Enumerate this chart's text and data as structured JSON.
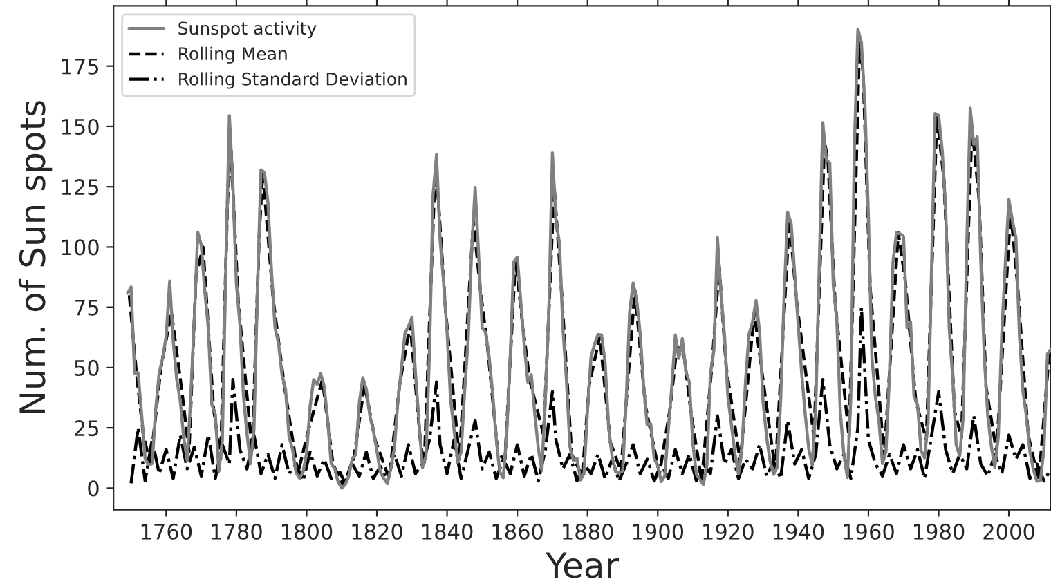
{
  "chart_data": {
    "type": "line",
    "xlabel": "Year",
    "ylabel": "Num. of Sun spots",
    "xlim": [
      1745,
      2012
    ],
    "xticks": [
      1760,
      1780,
      1800,
      1820,
      1840,
      1860,
      1880,
      1900,
      1920,
      1940,
      1960,
      1980,
      2000
    ],
    "ylim": [
      -9,
      200
    ],
    "yticks": [
      0,
      25,
      50,
      75,
      100,
      125,
      150,
      175
    ],
    "grid": false,
    "legend": "top left",
    "marker": "none",
    "series": [
      {
        "name": "Sunspot activity",
        "color": "#808080",
        "line_style": "solid",
        "x": [
          1749,
          1750,
          1751,
          1752,
          1753,
          1754,
          1755,
          1756,
          1757,
          1758,
          1759,
          1760,
          1761,
          1762,
          1763,
          1764,
          1765,
          1766,
          1767,
          1768,
          1769,
          1770,
          1771,
          1772,
          1773,
          1774,
          1775,
          1776,
          1777,
          1778,
          1779,
          1780,
          1781,
          1782,
          1783,
          1784,
          1785,
          1786,
          1787,
          1788,
          1789,
          1790,
          1791,
          1792,
          1793,
          1794,
          1795,
          1796,
          1797,
          1798,
          1799,
          1800,
          1801,
          1802,
          1803,
          1804,
          1805,
          1806,
          1807,
          1808,
          1809,
          1810,
          1811,
          1812,
          1813,
          1814,
          1815,
          1816,
          1817,
          1818,
          1819,
          1820,
          1821,
          1822,
          1823,
          1824,
          1825,
          1826,
          1827,
          1828,
          1829,
          1830,
          1831,
          1832,
          1833,
          1834,
          1835,
          1836,
          1837,
          1838,
          1839,
          1840,
          1841,
          1842,
          1843,
          1844,
          1845,
          1846,
          1847,
          1848,
          1849,
          1850,
          1851,
          1852,
          1853,
          1854,
          1855,
          1856,
          1857,
          1858,
          1859,
          1860,
          1861,
          1862,
          1863,
          1864,
          1865,
          1866,
          1867,
          1868,
          1869,
          1870,
          1871,
          1872,
          1873,
          1874,
          1875,
          1876,
          1877,
          1878,
          1879,
          1880,
          1881,
          1882,
          1883,
          1884,
          1885,
          1886,
          1887,
          1888,
          1889,
          1890,
          1891,
          1892,
          1893,
          1894,
          1895,
          1896,
          1897,
          1898,
          1899,
          1900,
          1901,
          1902,
          1903,
          1904,
          1905,
          1906,
          1907,
          1908,
          1909,
          1910,
          1911,
          1912,
          1913,
          1914,
          1915,
          1916,
          1917,
          1918,
          1919,
          1920,
          1921,
          1922,
          1923,
          1924,
          1925,
          1926,
          1927,
          1928,
          1929,
          1930,
          1931,
          1932,
          1933,
          1934,
          1935,
          1936,
          1937,
          1938,
          1939,
          1940,
          1941,
          1942,
          1943,
          1944,
          1945,
          1946,
          1947,
          1948,
          1949,
          1950,
          1951,
          1952,
          1953,
          1954,
          1955,
          1956,
          1957,
          1958,
          1959,
          1960,
          1961,
          1962,
          1963,
          1964,
          1965,
          1966,
          1967,
          1968,
          1969,
          1970,
          1971,
          1972,
          1973,
          1974,
          1975,
          1976,
          1977,
          1978,
          1979,
          1980,
          1981,
          1982,
          1983,
          1984,
          1985,
          1986,
          1987,
          1988,
          1989,
          1990,
          1991,
          1992,
          1993,
          1994,
          1995,
          1996,
          1997,
          1998,
          1999,
          2000,
          2001,
          2002,
          2003,
          2004,
          2005,
          2006,
          2007,
          2008,
          2009,
          2010,
          2011,
          2012
        ],
        "values": [
          80.9,
          83.4,
          47.7,
          47.8,
          30.7,
          12.2,
          9.6,
          10.2,
          32.4,
          47.6,
          54.0,
          62.9,
          85.9,
          61.2,
          45.1,
          36.4,
          20.9,
          11.4,
          37.8,
          69.8,
          106.1,
          100.8,
          81.6,
          66.5,
          34.8,
          30.6,
          7.0,
          19.8,
          92.5,
          154.4,
          125.9,
          84.8,
          68.1,
          38.5,
          22.8,
          10.2,
          24.1,
          82.9,
          132.0,
          130.9,
          118.1,
          89.9,
          66.6,
          60.0,
          46.9,
          41.0,
          21.3,
          16.0,
          6.4,
          4.1,
          6.8,
          14.5,
          34.0,
          45.0,
          43.1,
          47.5,
          42.2,
          28.1,
          10.1,
          8.1,
          2.5,
          0.0,
          1.4,
          5.0,
          12.2,
          13.9,
          35.4,
          45.8,
          41.1,
          30.1,
          23.9,
          15.6,
          6.6,
          4.0,
          1.8,
          8.5,
          16.6,
          36.3,
          49.6,
          64.2,
          67.0,
          70.9,
          47.8,
          27.5,
          8.5,
          13.2,
          56.9,
          121.5,
          138.3,
          103.2,
          85.7,
          64.6,
          36.7,
          24.2,
          10.7,
          15.0,
          40.1,
          61.5,
          98.5,
          124.7,
          96.3,
          66.6,
          64.5,
          54.1,
          39.0,
          20.6,
          6.7,
          4.3,
          22.7,
          54.8,
          93.8,
          95.8,
          77.2,
          59.1,
          44.0,
          47.0,
          30.5,
          16.3,
          7.3,
          37.6,
          74.0,
          139.0,
          111.2,
          101.6,
          66.2,
          44.7,
          17.0,
          11.3,
          12.4,
          3.4,
          6.0,
          32.3,
          54.3,
          59.7,
          63.7,
          63.5,
          52.2,
          25.4,
          13.1,
          6.8,
          6.3,
          7.1,
          35.6,
          73.0,
          85.1,
          78.0,
          64.0,
          41.8,
          26.2,
          26.7,
          12.1,
          9.5,
          2.7,
          5.0,
          24.4,
          42.0,
          63.5,
          53.8,
          62.0,
          48.5,
          43.9,
          18.6,
          5.7,
          3.6,
          1.4,
          9.6,
          47.4,
          57.1,
          103.9,
          80.6,
          63.6,
          37.6,
          26.1,
          14.2,
          5.8,
          16.7,
          44.3,
          63.9,
          69.0,
          77.8,
          64.9,
          35.7,
          21.2,
          11.1,
          5.7,
          8.7,
          36.1,
          79.7,
          114.4,
          109.6,
          88.8,
          67.8,
          47.5,
          30.6,
          16.3,
          9.6,
          33.2,
          92.6,
          151.6,
          136.3,
          134.7,
          83.9,
          69.4,
          31.5,
          13.9,
          4.4,
          38.0,
          141.7,
          190.2,
          184.8,
          159.0,
          112.3,
          53.9,
          37.6,
          27.9,
          10.2,
          15.1,
          47.0,
          93.8,
          105.9,
          105.5,
          104.5,
          66.6,
          68.9,
          38.0,
          34.5,
          15.5,
          12.6,
          27.5,
          92.5,
          155.4,
          154.6,
          140.4,
          115.9,
          66.6,
          45.9,
          17.9,
          13.4,
          29.4,
          100.2,
          157.6,
          142.6,
          145.7,
          94.3,
          54.6,
          29.9,
          17.5,
          8.6,
          21.5,
          64.3,
          93.3,
          119.6,
          111.0,
          104.0,
          63.7,
          40.4,
          29.8,
          15.2,
          7.5,
          2.9,
          3.1,
          16.5,
          55.7,
          57.6
        ]
      },
      {
        "name": "Rolling Mean",
        "color": "#000000",
        "line_style": "dashed",
        "x": [
          1749.5,
          1751.5,
          1753.5,
          1755.5,
          1758.5,
          1761.5,
          1764.5,
          1766.5,
          1768.5,
          1770.5,
          1773.5,
          1775.5,
          1777.5,
          1778.5,
          1780.5,
          1784.5,
          1786.5,
          1787.5,
          1790.5,
          1793.5,
          1797.5,
          1800.5,
          1804.5,
          1807.5,
          1810.5,
          1813.5,
          1816.5,
          1819.5,
          1823.5,
          1826.5,
          1829.5,
          1832.5,
          1833.5,
          1836.5,
          1837.5,
          1839.5,
          1843.5,
          1847.5,
          1849.5,
          1851.5,
          1854.5,
          1856.5,
          1859.5,
          1861.5,
          1863.5,
          1867.5,
          1870.5,
          1872.5,
          1875.5,
          1878.5,
          1880.5,
          1883.5,
          1886.5,
          1889.5,
          1893.5,
          1896.5,
          1900.5,
          1903.5,
          1905.5,
          1907.5,
          1909.5,
          1912.5,
          1915.5,
          1917.5,
          1919.5,
          1923.5,
          1927.5,
          1929.5,
          1933.5,
          1937.5,
          1939.5,
          1944.5,
          1947.5,
          1948.5,
          1950.5,
          1954.5,
          1957.5,
          1958.5,
          1960.5,
          1964.5,
          1968.5,
          1970.5,
          1973.5,
          1976.5,
          1979.5,
          1981.5,
          1984.5,
          1986.5,
          1989.5,
          1991.5,
          1993.5,
          1996.5,
          2000.5,
          2002.5,
          2005.5,
          2008.5,
          2011.5
        ],
        "values": [
          80,
          48,
          22,
          10,
          50,
          73,
          40,
          15,
          88,
          100,
          33,
          12,
          120,
          140,
          78,
          15,
          105,
          131,
          78,
          44,
          6,
          24,
          45,
          10,
          1,
          13,
          43,
          20,
          4,
          43,
          68,
          18,
          10,
          128,
          120,
          75,
          12,
          111,
          82,
          59,
          14,
          12,
          95,
          68,
          45,
          22,
          125,
          84,
          14,
          5,
          43,
          63,
          19,
          7,
          82,
          34,
          6,
          33,
          59,
          55,
          31,
          3,
          52,
          92,
          50,
          11,
          73,
          50,
          7,
          112,
          78,
          21,
          144,
          135,
          77,
          21,
          187,
          172,
          83,
          13,
          106,
          86,
          36,
          20,
          155,
          128,
          32,
          21,
          150,
          120,
          42,
          15,
          115,
          84,
          22,
          3,
          56
        ]
      },
      {
        "name": "Rolling Standard Deviation",
        "color": "#000000",
        "line_style": "dashdot",
        "x": [
          1750,
          1752,
          1754,
          1756,
          1758,
          1760,
          1762,
          1764,
          1766,
          1768,
          1770,
          1772,
          1774,
          1776,
          1778,
          1779,
          1781,
          1783,
          1785,
          1787,
          1789,
          1791,
          1793,
          1795,
          1797,
          1799,
          1801,
          1803,
          1805,
          1807,
          1809,
          1811,
          1813,
          1815,
          1817,
          1819,
          1821,
          1823,
          1825,
          1827,
          1829,
          1831,
          1833,
          1835,
          1837,
          1838,
          1840,
          1842,
          1844,
          1846,
          1848,
          1850,
          1852,
          1854,
          1856,
          1858,
          1860,
          1862,
          1864,
          1866,
          1868,
          1870,
          1871,
          1873,
          1875,
          1877,
          1879,
          1881,
          1883,
          1885,
          1887,
          1889,
          1891,
          1893,
          1895,
          1897,
          1899,
          1901,
          1903,
          1905,
          1907,
          1909,
          1911,
          1913,
          1915,
          1917,
          1919,
          1921,
          1923,
          1925,
          1927,
          1929,
          1931,
          1933,
          1935,
          1937,
          1939,
          1941,
          1943,
          1945,
          1947,
          1949,
          1951,
          1953,
          1955,
          1957,
          1958,
          1960,
          1962,
          1964,
          1966,
          1968,
          1970,
          1972,
          1974,
          1976,
          1978,
          1980,
          1982,
          1984,
          1986,
          1988,
          1990,
          1992,
          1994,
          1996,
          1998,
          2000,
          2002,
          2004,
          2006,
          2008,
          2010,
          2012
        ],
        "values": [
          2,
          25,
          3,
          20,
          6,
          16,
          4,
          22,
          8,
          17,
          5,
          22,
          4,
          18,
          10,
          45,
          16,
          8,
          22,
          6,
          14,
          4,
          18,
          6,
          10,
          3,
          15,
          5,
          12,
          4,
          8,
          2,
          10,
          5,
          15,
          4,
          9,
          3,
          14,
          5,
          18,
          6,
          10,
          20,
          44,
          18,
          6,
          20,
          4,
          16,
          28,
          8,
          15,
          4,
          12,
          6,
          18,
          5,
          14,
          3,
          16,
          40,
          20,
          8,
          14,
          3,
          10,
          6,
          14,
          4,
          12,
          3,
          10,
          18,
          6,
          12,
          3,
          10,
          4,
          16,
          6,
          14,
          3,
          10,
          6,
          30,
          10,
          16,
          4,
          12,
          8,
          18,
          5,
          11,
          4,
          28,
          10,
          16,
          4,
          14,
          45,
          18,
          8,
          14,
          4,
          25,
          75,
          20,
          10,
          5,
          14,
          6,
          18,
          8,
          16,
          4,
          22,
          40,
          16,
          6,
          14,
          8,
          30,
          10,
          5,
          14,
          6,
          22,
          12,
          18,
          4,
          10,
          3,
          8
        ]
      }
    ]
  }
}
